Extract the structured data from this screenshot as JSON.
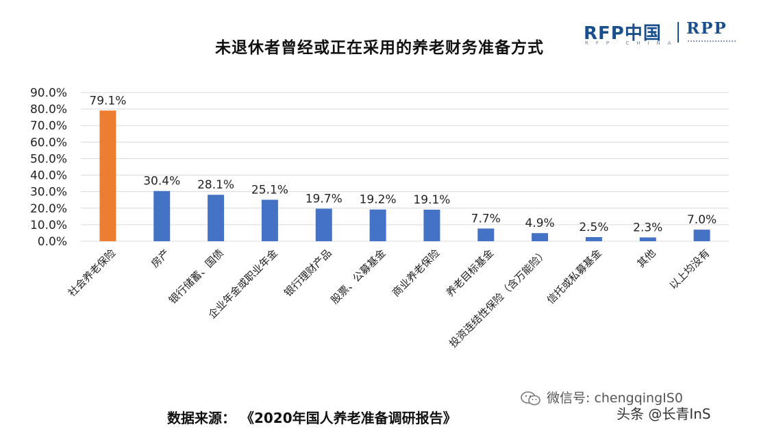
{
  "chart_data": {
    "type": "bar",
    "title": "未退休者曾经或正在采用的养老财务准备方式",
    "categories": [
      "社会养老保险",
      "房产",
      "银行储蓄、国债",
      "企业年金或职业年金",
      "银行理财产品",
      "股票、公募基金",
      "商业养老保险",
      "养老目标基金",
      "投资连结性保险（含万能险）",
      "信托或私募基金",
      "其他",
      "以上均没有"
    ],
    "values": [
      79.1,
      30.4,
      28.1,
      25.1,
      19.7,
      19.2,
      19.1,
      7.7,
      4.9,
      2.5,
      2.3,
      7.0
    ],
    "value_labels": [
      "79.1%",
      "30.4%",
      "28.1%",
      "25.1%",
      "19.7%",
      "19.2%",
      "19.1%",
      "7.7%",
      "4.9%",
      "2.5%",
      "2.3%",
      "7.0%"
    ],
    "yticks": [
      "0.0%",
      "10.0%",
      "20.0%",
      "30.0%",
      "40.0%",
      "50.0%",
      "60.0%",
      "70.0%",
      "80.0%",
      "90.0%"
    ],
    "ylim": [
      0,
      90
    ],
    "grid": true,
    "colors": {
      "highlight": "#ed7d31",
      "default": "#4472c4",
      "grid": "#d9d9d9"
    },
    "highlight_index": 0
  },
  "logo": {
    "brand": "RFP中国",
    "sub": "RFP CHINA",
    "brand2": "RPP"
  },
  "footer": {
    "source": "数据来源：  《2020年国人养老准备调研报告》"
  },
  "watermark": {
    "wechat": "微信号: chengqingIS0",
    "toutiao": "头条 @长青InS"
  }
}
